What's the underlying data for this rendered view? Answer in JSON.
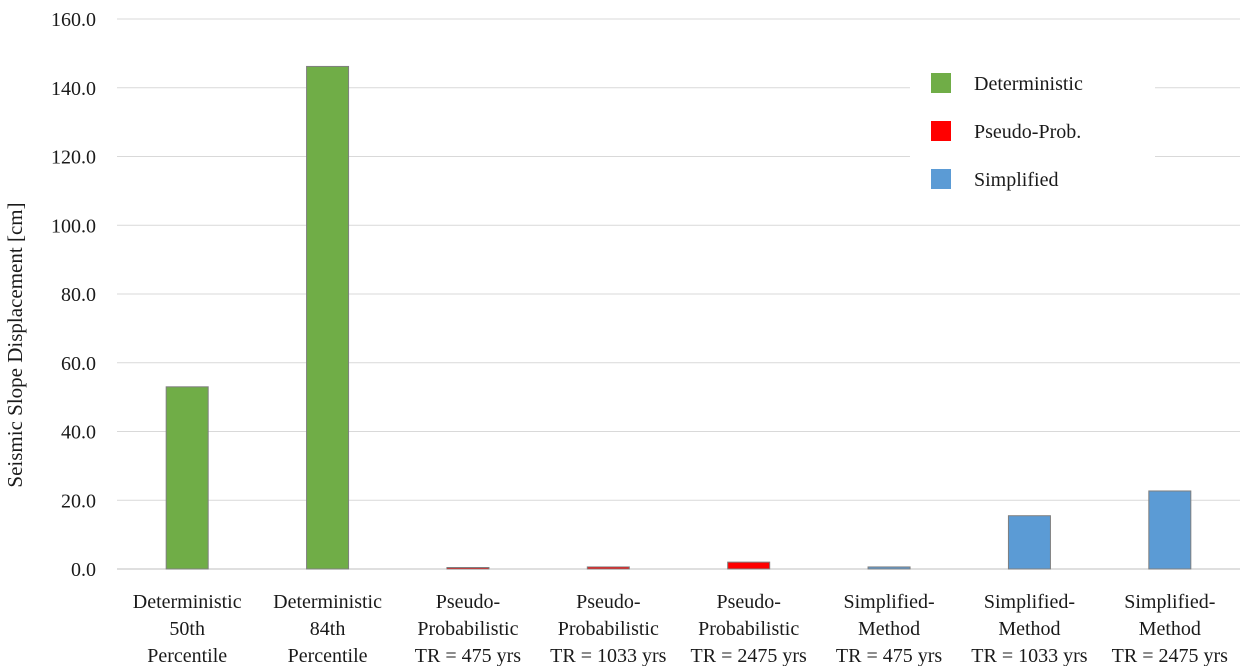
{
  "chart_data": {
    "type": "bar",
    "title": "",
    "xlabel": "",
    "ylabel": "Seismic Slope  Displacement [cm]",
    "ylim": [
      0,
      160
    ],
    "y_ticks": [
      "0.0",
      "20.0",
      "40.0",
      "60.0",
      "80.0",
      "100.0",
      "120.0",
      "140.0",
      "160.0"
    ],
    "grid": true,
    "legend_position": "top-right",
    "categories": [
      [
        "Deterministic",
        "50th",
        "Percentile"
      ],
      [
        "Deterministic",
        "84th",
        "Percentile"
      ],
      [
        "Pseudo-",
        "Probabilistic",
        "TR = 475 yrs"
      ],
      [
        "Pseudo-",
        "Probabilistic",
        "TR = 1033 yrs"
      ],
      [
        "Pseudo-",
        "Probabilistic",
        "TR = 2475 yrs"
      ],
      [
        "Simplified-",
        "Method",
        "TR = 475 yrs"
      ],
      [
        "Simplified-",
        "Method",
        "TR = 1033 yrs"
      ],
      [
        "Simplified-",
        "Method",
        "TR = 2475 yrs"
      ]
    ],
    "values": [
      53.0,
      146.2,
      0.2,
      0.6,
      2.0,
      0.6,
      15.5,
      22.7
    ],
    "bar_series": [
      0,
      0,
      1,
      1,
      1,
      2,
      2,
      2
    ],
    "series": [
      {
        "name": "Deterministic",
        "color": "#70ad47"
      },
      {
        "name": "Pseudo-Prob.",
        "color": "#ff0000"
      },
      {
        "name": "Simplified",
        "color": "#5b9bd5"
      }
    ]
  }
}
